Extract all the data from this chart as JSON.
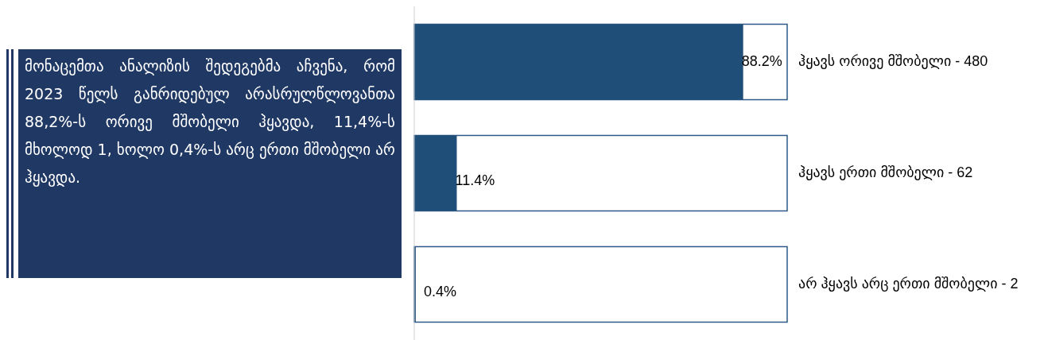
{
  "chart_data": [
    {
      "type": "other",
      "annotations": [
        "მონაცემთა ანალიზის შედეგებმა აჩვენა, რომ 2023 წელს განრიდებულ არასრულწლოვანთა 88,2%-ს ორივე მშობელი ჰყავდა, 11,4%-ს მხოლოდ 1, ხოლო 0,4%-ს არც ერთი მშობელი არ ჰყავდა."
      ]
    },
    {
      "type": "bar",
      "orientation": "horizontal",
      "categories": [
        "ჰყავს ორივე მშობელი - 480",
        "ჰყავს ერთი მშობელი - 62",
        "არ ჰყავს არც ერთი მშობელი - 2"
      ],
      "values": [
        88.2,
        11.4,
        0.4
      ],
      "value_labels": [
        "88.2%",
        "11.4%",
        "0.4%"
      ],
      "color": "#1f4e79",
      "xlim": [
        0,
        100
      ]
    }
  ]
}
